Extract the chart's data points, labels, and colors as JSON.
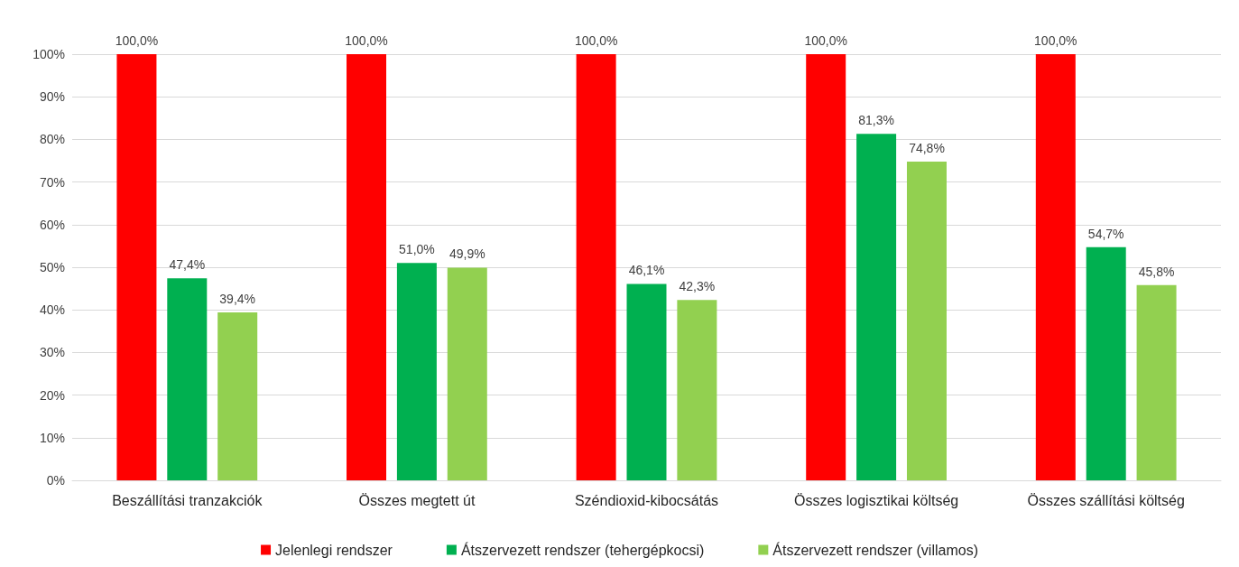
{
  "chart_data": {
    "type": "bar",
    "categories": [
      "Beszállítási tranzakciók",
      "Összes megtett út",
      "Széndioxid-kibocsátás",
      "Összes logisztikai költség",
      "Összes szállítási költség"
    ],
    "series": [
      {
        "name": "Jelenlegi rendszer",
        "color": "#ff0000",
        "values": [
          100,
          100,
          100,
          100,
          100
        ],
        "value_labels": [
          "100,0%",
          "100,0%",
          "100,0%",
          "100,0%",
          "100,0%"
        ]
      },
      {
        "name": "Átszervezett rendszer (tehergépkocsi)",
        "color": "#00b050",
        "values": [
          47.4,
          51.0,
          46.1,
          81.3,
          54.7
        ],
        "value_labels": [
          "47,4%",
          "51,0%",
          "46,1%",
          "81,3%",
          "54,7%"
        ]
      },
      {
        "name": "Átszervezett rendszer (villamos)",
        "color": "#92d050",
        "values": [
          39.4,
          49.9,
          42.3,
          74.8,
          45.8
        ],
        "value_labels": [
          "39,4%",
          "49,9%",
          "42,3%",
          "74,8%",
          "45,8%"
        ]
      }
    ],
    "ylim": [
      0,
      100
    ],
    "yticks": [
      {
        "value": 0,
        "label": "0%"
      },
      {
        "value": 10,
        "label": "10%"
      },
      {
        "value": 20,
        "label": "20%"
      },
      {
        "value": 30,
        "label": "30%"
      },
      {
        "value": 40,
        "label": "40%"
      },
      {
        "value": 50,
        "label": "50%"
      },
      {
        "value": 60,
        "label": "60%"
      },
      {
        "value": 70,
        "label": "70%"
      },
      {
        "value": 80,
        "label": "80%"
      },
      {
        "value": 90,
        "label": "90%"
      },
      {
        "value": 100,
        "label": "100%"
      }
    ],
    "grid": "y",
    "legend": "bottom"
  }
}
